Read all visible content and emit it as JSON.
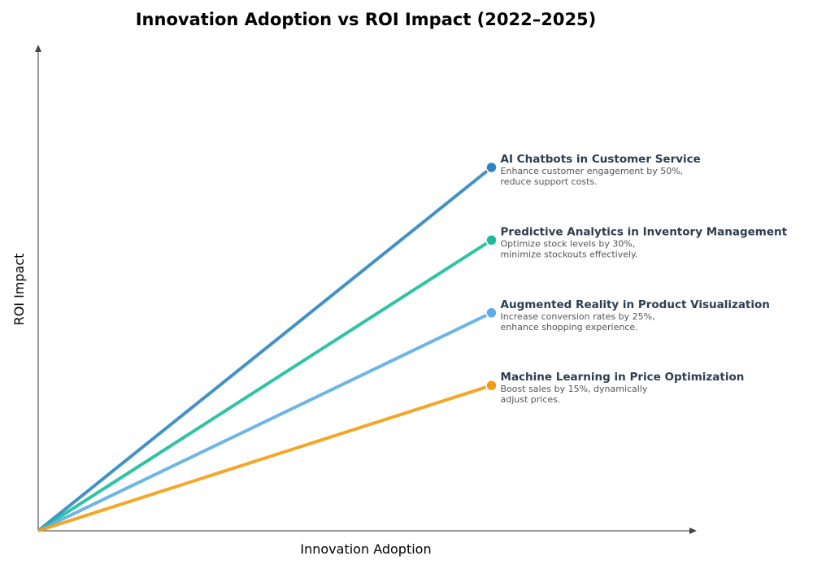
{
  "chart_data": {
    "type": "line",
    "title": "Innovation Adoption vs ROI Impact (2022–2025)",
    "xlabel": "Innovation Adoption",
    "ylabel": "ROI Impact",
    "xlim": [
      0,
      1
    ],
    "ylim": [
      0,
      1
    ],
    "grid": false,
    "tick_labels": false,
    "series": [
      {
        "name": "AI Chatbots in Customer Service",
        "desc1": "Enhance customer engagement by 50%,",
        "desc2": "reduce support costs.",
        "x": [
          0,
          0.69
        ],
        "y": [
          0,
          0.75
        ],
        "color": "#2e86c1"
      },
      {
        "name": "Predictive Analytics in Inventory Management",
        "desc1": "Optimize stock levels by 30%,",
        "desc2": "minimize stockouts effectively.",
        "x": [
          0,
          0.69
        ],
        "y": [
          0,
          0.6
        ],
        "color": "#1abc9c"
      },
      {
        "name": "Augmented Reality in Product Visualization",
        "desc1": "Increase conversion rates by 25%,",
        "desc2": "enhance shopping experience.",
        "x": [
          0,
          0.69
        ],
        "y": [
          0,
          0.45
        ],
        "color": "#5dade2"
      },
      {
        "name": "Machine Learning in Price Optimization",
        "desc1": "Boost sales by 15%, dynamically",
        "desc2": "adjust prices.",
        "x": [
          0,
          0.69
        ],
        "y": [
          0,
          0.3
        ],
        "color": "#f39c12"
      }
    ]
  }
}
